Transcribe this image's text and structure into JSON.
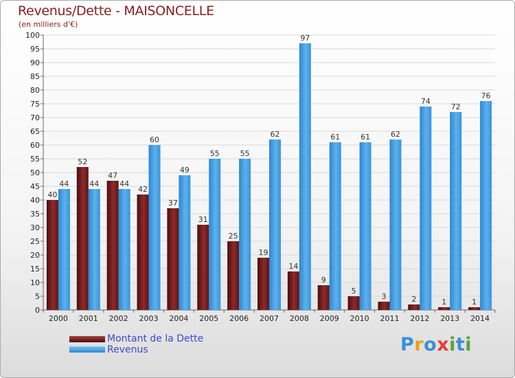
{
  "header": {
    "title": "Revenus/Dette - MAISONCELLE",
    "subtitle": "(en milliers d'€)"
  },
  "chart_data": {
    "type": "bar",
    "title": "Revenus/Dette - MAISONCELLE",
    "subtitle": "(en milliers d'€)",
    "xlabel": "",
    "ylabel": "",
    "ylim": [
      0,
      100
    ],
    "yticks": [
      0,
      5,
      10,
      15,
      20,
      25,
      30,
      35,
      40,
      45,
      50,
      55,
      60,
      65,
      70,
      75,
      80,
      85,
      90,
      95,
      100
    ],
    "grid": true,
    "legend_position": "bottom-left",
    "categories": [
      "2000",
      "2001",
      "2002",
      "2003",
      "2004",
      "2005",
      "2006",
      "2007",
      "2008",
      "2009",
      "2010",
      "2011",
      "2012",
      "2013",
      "2014"
    ],
    "series": [
      {
        "name": "Montant de la Dette",
        "color": "#7a1f1f",
        "values": [
          40,
          52,
          47,
          42,
          37,
          31,
          25,
          19,
          14,
          9,
          5,
          3,
          2,
          1,
          1
        ]
      },
      {
        "name": "Revenus",
        "color": "#4aa0e0",
        "values": [
          44,
          44,
          44,
          60,
          49,
          55,
          55,
          62,
          97,
          61,
          61,
          62,
          74,
          72,
          76
        ]
      }
    ]
  },
  "legend": {
    "items": [
      {
        "label": "Montant de la Dette",
        "color": "#7a1f1f"
      },
      {
        "label": "Revenus",
        "color": "#4aa0e0"
      }
    ]
  },
  "logo": {
    "text": "Proxiti",
    "colors": [
      "#3b8fd6",
      "#e9a21a",
      "#3b8fd6",
      "#e83a3a",
      "#5aa33a",
      "#3b8fd6",
      "#5aa33a"
    ]
  }
}
